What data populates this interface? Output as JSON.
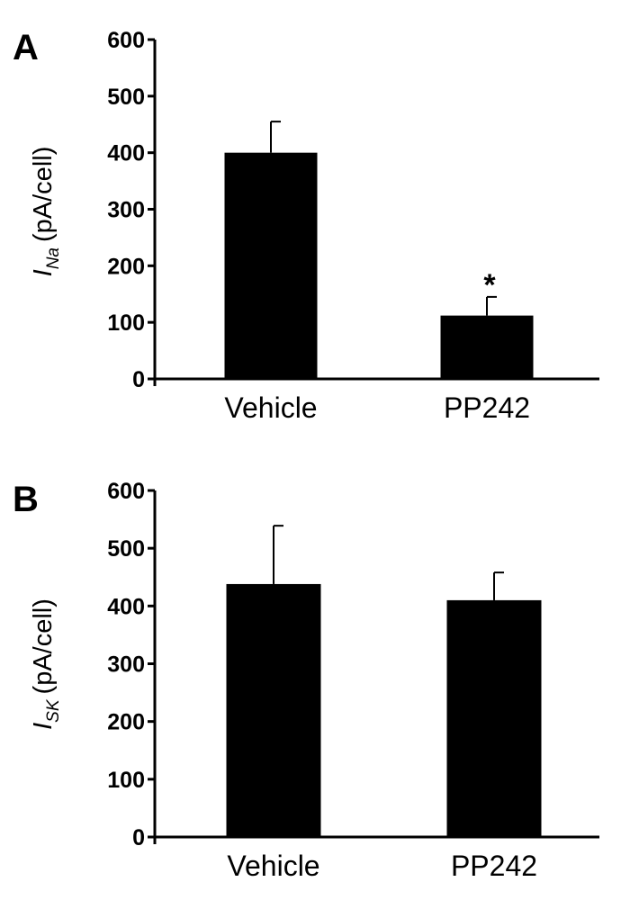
{
  "chart_data": [
    {
      "panel": "A",
      "type": "bar",
      "categories": [
        "Vehicle",
        "PP242"
      ],
      "values": [
        400,
        112
      ],
      "error": [
        55,
        33
      ],
      "ylabel_symbol": "I",
      "ylabel_subscript": "Na",
      "ylabel_unit": "(pA/cell)",
      "ylim": [
        0,
        600
      ],
      "yticks": [
        "0",
        "100",
        "200",
        "300",
        "400",
        "500",
        "600"
      ],
      "annotations": [
        {
          "category": "PP242",
          "text": "*"
        }
      ],
      "grid": false,
      "colors": {
        "bar": "#000000"
      }
    },
    {
      "panel": "B",
      "type": "bar",
      "categories": [
        "Vehicle",
        "PP242"
      ],
      "values": [
        438,
        410
      ],
      "error": [
        101,
        48
      ],
      "ylabel_symbol": "I",
      "ylabel_subscript": "SK",
      "ylabel_unit": "(pA/cell)",
      "ylim": [
        0,
        600
      ],
      "yticks": [
        "0",
        "100",
        "200",
        "300",
        "400",
        "500",
        "600"
      ],
      "annotations": [],
      "grid": false,
      "colors": {
        "bar": "#000000"
      }
    }
  ]
}
